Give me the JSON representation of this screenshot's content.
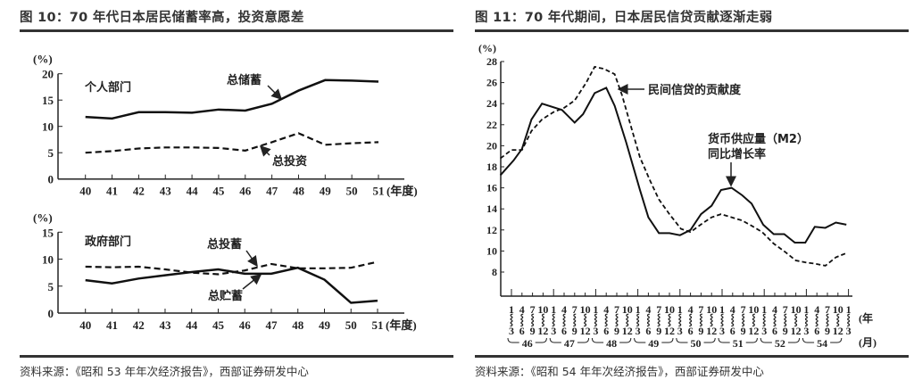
{
  "left_panel": {
    "title": "图 10：70 年代日本居民储蓄率高，投资意愿差",
    "source": "资料来源：《昭和 53 年年次经济报告》，西部证券研发中心"
  },
  "right_panel": {
    "title": "图 11：70 年代期间，日本居民信贷贡献逐渐走弱",
    "source": "资料来源：《昭和 54 年年次经济报告》，西部证券研发中心"
  },
  "chart_data": [
    {
      "type": "line",
      "panel_label": "个人部门",
      "ylabel": "(%)",
      "xlabel": "(年度)",
      "x": [
        40,
        41,
        42,
        43,
        44,
        45,
        46,
        47,
        48,
        49,
        50,
        51
      ],
      "ylim": [
        0,
        20
      ],
      "yticks": [
        0,
        5,
        10,
        15,
        20
      ],
      "series": [
        {
          "name": "总储蓄",
          "style": "solid",
          "values": [
            11.8,
            11.5,
            12.7,
            12.7,
            12.6,
            13.2,
            13.0,
            14.3,
            16.8,
            18.8,
            18.7,
            18.5
          ]
        },
        {
          "name": "总投资",
          "style": "dashed",
          "values": [
            5.0,
            5.3,
            5.8,
            6.0,
            6.0,
            5.9,
            5.4,
            7.0,
            8.7,
            6.5,
            6.8,
            7.0
          ]
        }
      ]
    },
    {
      "type": "line",
      "panel_label": "政府部门",
      "ylabel": "(%)",
      "xlabel": "(年度)",
      "x": [
        40,
        41,
        42,
        43,
        44,
        45,
        46,
        47,
        48,
        49,
        50,
        51
      ],
      "ylim": [
        0,
        15
      ],
      "yticks": [
        0,
        5,
        10,
        15
      ],
      "series": [
        {
          "name": "总投蓄",
          "style": "dashed",
          "values": [
            8.6,
            8.5,
            8.6,
            8.1,
            7.5,
            7.2,
            7.9,
            9.1,
            8.3,
            8.3,
            8.4,
            9.5
          ]
        },
        {
          "name": "总贮蓄",
          "style": "solid",
          "values": [
            6.1,
            5.5,
            6.4,
            7.0,
            7.6,
            8.1,
            7.3,
            7.3,
            8.4,
            6.2,
            1.9,
            2.3
          ]
        }
      ]
    },
    {
      "type": "line",
      "ylabel": "(%)",
      "ylim": [
        7,
        28
      ],
      "yticks": [
        8,
        10,
        12,
        14,
        16,
        18,
        20,
        22,
        24,
        26,
        28
      ],
      "x_month_start": [
        "1",
        "4",
        "7",
        "10",
        "1",
        "4",
        "7",
        "10",
        "1",
        "4",
        "7",
        "10",
        "1",
        "4",
        "7",
        "10",
        "1",
        "4",
        "7",
        "10",
        "1",
        "4",
        "7",
        "10",
        "1",
        "4",
        "7",
        "10",
        "1",
        "4",
        "7",
        "10",
        "1"
      ],
      "x_month_end": [
        "3",
        "6",
        "9",
        "12",
        "3",
        "6",
        "9",
        "12",
        "3",
        "6",
        "9",
        "12",
        "3",
        "6",
        "9",
        "12",
        "3",
        "6",
        "9",
        "12",
        "3",
        "6",
        "9",
        "12",
        "3",
        "6",
        "9",
        "12",
        "3",
        "6",
        "9",
        "12",
        "3"
      ],
      "x_range_mark": "⸾",
      "x_years": [
        "46",
        "47",
        "48",
        "49",
        "50",
        "51",
        "52",
        "54"
      ],
      "x_unit_month": "(月)",
      "x_unit_year": "(年",
      "series": [
        {
          "name": "货币供应量（M2）同比增长率",
          "label_lines": [
            "货币供应量（M2）",
            "同比增长率"
          ],
          "style": "solid",
          "points": [
            [
              -1.05,
              17.2
            ],
            [
              0.2,
              18.6
            ],
            [
              1.0,
              19.7
            ],
            [
              1.9,
              22.5
            ],
            [
              2.9,
              24.0
            ],
            [
              4.8,
              23.4
            ],
            [
              6.0,
              22.2
            ],
            [
              6.8,
              23.0
            ],
            [
              7.9,
              25.0
            ],
            [
              9.0,
              25.5
            ],
            [
              9.8,
              23.8
            ],
            [
              10.9,
              20.3
            ],
            [
              12.2,
              15.8
            ],
            [
              13.0,
              13.2
            ],
            [
              14.0,
              11.7
            ],
            [
              15.0,
              11.7
            ],
            [
              16.0,
              11.5
            ],
            [
              17.0,
              12.0
            ],
            [
              18.0,
              13.5
            ],
            [
              19.0,
              14.3
            ],
            [
              19.9,
              15.8
            ],
            [
              20.9,
              16.0
            ],
            [
              21.9,
              15.3
            ],
            [
              22.8,
              14.5
            ],
            [
              23.9,
              12.5
            ],
            [
              24.9,
              11.6
            ],
            [
              25.9,
              11.6
            ],
            [
              26.9,
              10.8
            ],
            [
              27.9,
              10.8
            ],
            [
              28.8,
              12.3
            ],
            [
              29.8,
              12.2
            ],
            [
              30.8,
              12.7
            ],
            [
              31.8,
              12.5
            ]
          ]
        },
        {
          "name": "民间信贷的贡献度",
          "style": "dashed",
          "points": [
            [
              -1.05,
              18.8
            ],
            [
              0.0,
              19.6
            ],
            [
              1.0,
              19.6
            ],
            [
              1.9,
              21.4
            ],
            [
              2.9,
              22.5
            ],
            [
              4.0,
              23.2
            ],
            [
              5.0,
              23.6
            ],
            [
              6.0,
              24.3
            ],
            [
              7.1,
              26.0
            ],
            [
              7.9,
              27.5
            ],
            [
              8.8,
              27.3
            ],
            [
              9.8,
              26.8
            ],
            [
              10.5,
              24.8
            ],
            [
              11.3,
              22.0
            ],
            [
              12.2,
              18.9
            ],
            [
              13.2,
              16.6
            ],
            [
              14.0,
              14.9
            ],
            [
              15.0,
              13.5
            ],
            [
              16.1,
              12.1
            ],
            [
              17.0,
              11.8
            ],
            [
              18.1,
              12.6
            ],
            [
              19.0,
              13.2
            ],
            [
              19.9,
              13.5
            ],
            [
              20.9,
              13.2
            ],
            [
              21.9,
              12.9
            ],
            [
              22.8,
              12.4
            ],
            [
              23.8,
              11.8
            ],
            [
              24.9,
              10.7
            ],
            [
              26.0,
              9.9
            ],
            [
              27.0,
              9.1
            ],
            [
              28.0,
              8.9
            ],
            [
              28.8,
              8.8
            ],
            [
              29.8,
              8.6
            ],
            [
              30.8,
              9.4
            ],
            [
              31.8,
              9.8
            ]
          ]
        }
      ]
    }
  ]
}
